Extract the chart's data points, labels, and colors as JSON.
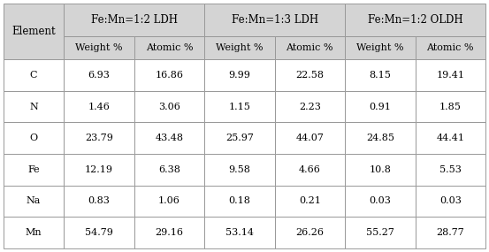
{
  "col_groups": [
    {
      "label": "Fe:Mn=1:2 LDH",
      "cols": [
        "Weight %",
        "Atomic %"
      ]
    },
    {
      "label": "Fe:Mn=1:3 LDH",
      "cols": [
        "Weight %",
        "Atomic %"
      ]
    },
    {
      "label": "Fe:Mn=1:2 OLDH",
      "cols": [
        "Weight %",
        "Atomic %"
      ]
    }
  ],
  "row_header": "Element",
  "elements": [
    "C",
    "N",
    "O",
    "Fe",
    "Na",
    "Mn"
  ],
  "data": [
    [
      "6.93",
      "16.86",
      "9.99",
      "22.58",
      "8.15",
      "19.41"
    ],
    [
      "1.46",
      "3.06",
      "1.15",
      "2.23",
      "0.91",
      "1.85"
    ],
    [
      "23.79",
      "43.48",
      "25.97",
      "44.07",
      "24.85",
      "44.41"
    ],
    [
      "12.19",
      "6.38",
      "9.58",
      "4.66",
      "10.8",
      "5.53"
    ],
    [
      "0.83",
      "1.06",
      "0.18",
      "0.21",
      "0.03",
      "0.03"
    ],
    [
      "54.79",
      "29.16",
      "53.14",
      "26.26",
      "55.27",
      "28.77"
    ]
  ],
  "header_bg": "#d4d4d4",
  "row_bg": "#ffffff",
  "border_color": "#999999",
  "text_color": "#000000",
  "font_size": 8.0,
  "header_font_size": 8.5,
  "fig_width": 5.53,
  "fig_height": 2.85,
  "dpi": 100
}
